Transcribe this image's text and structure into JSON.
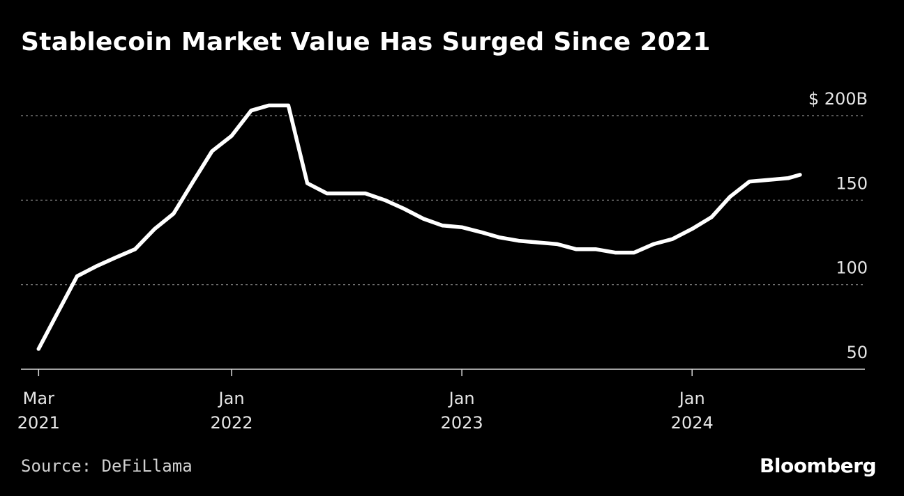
{
  "chart_data": {
    "type": "line",
    "title": "Stablecoin Market Value Has Surged Since 2021",
    "xlabel": "",
    "ylabel": "",
    "y_unit_label": "$ 200B",
    "ylim": [
      50,
      200
    ],
    "yticks": [
      {
        "value": 50,
        "label": "50"
      },
      {
        "value": 100,
        "label": "100"
      },
      {
        "value": 150,
        "label": "150"
      },
      {
        "value": 200,
        "label": "$ 200B"
      }
    ],
    "xticks": [
      {
        "date": "2021-03-01",
        "month": "Mar",
        "year": "2021"
      },
      {
        "date": "2022-01-01",
        "month": "Jan",
        "year": "2022"
      },
      {
        "date": "2023-01-01",
        "month": "Jan",
        "year": "2023"
      },
      {
        "date": "2024-01-01",
        "month": "Jan",
        "year": "2024"
      }
    ],
    "xlim": [
      "2021-02-01",
      "2024-10-01"
    ],
    "grid": true,
    "line_color": "#ffffff",
    "series": [
      {
        "x": [
          "2021-03-01",
          "2021-04-01",
          "2021-05-01",
          "2021-06-01",
          "2021-07-01",
          "2021-08-01",
          "2021-09-01",
          "2021-10-01",
          "2021-11-01",
          "2021-12-01",
          "2022-01-01",
          "2022-02-01",
          "2022-03-01",
          "2022-04-01",
          "2022-05-01",
          "2022-06-01",
          "2022-07-01",
          "2022-08-01",
          "2022-09-01",
          "2022-10-01",
          "2022-11-01",
          "2022-12-01",
          "2023-01-01",
          "2023-02-01",
          "2023-03-01",
          "2023-04-01",
          "2023-05-01",
          "2023-06-01",
          "2023-07-01",
          "2023-08-01",
          "2023-09-01",
          "2023-10-01",
          "2023-11-01",
          "2023-12-01",
          "2024-01-01",
          "2024-02-01",
          "2024-03-01",
          "2024-04-01",
          "2024-05-01",
          "2024-06-01",
          "2024-06-20"
        ],
        "values": [
          62,
          84,
          105,
          111,
          116,
          121,
          133,
          142,
          161,
          179,
          188,
          203,
          206,
          206,
          160,
          154,
          154,
          154,
          150,
          145,
          139,
          135,
          134,
          131,
          128,
          126,
          125,
          124,
          121,
          121,
          119,
          119,
          124,
          127,
          133,
          140,
          152,
          161,
          162,
          163,
          165
        ]
      }
    ]
  },
  "source": "Source: DeFiLlama",
  "brand": "Bloomberg"
}
